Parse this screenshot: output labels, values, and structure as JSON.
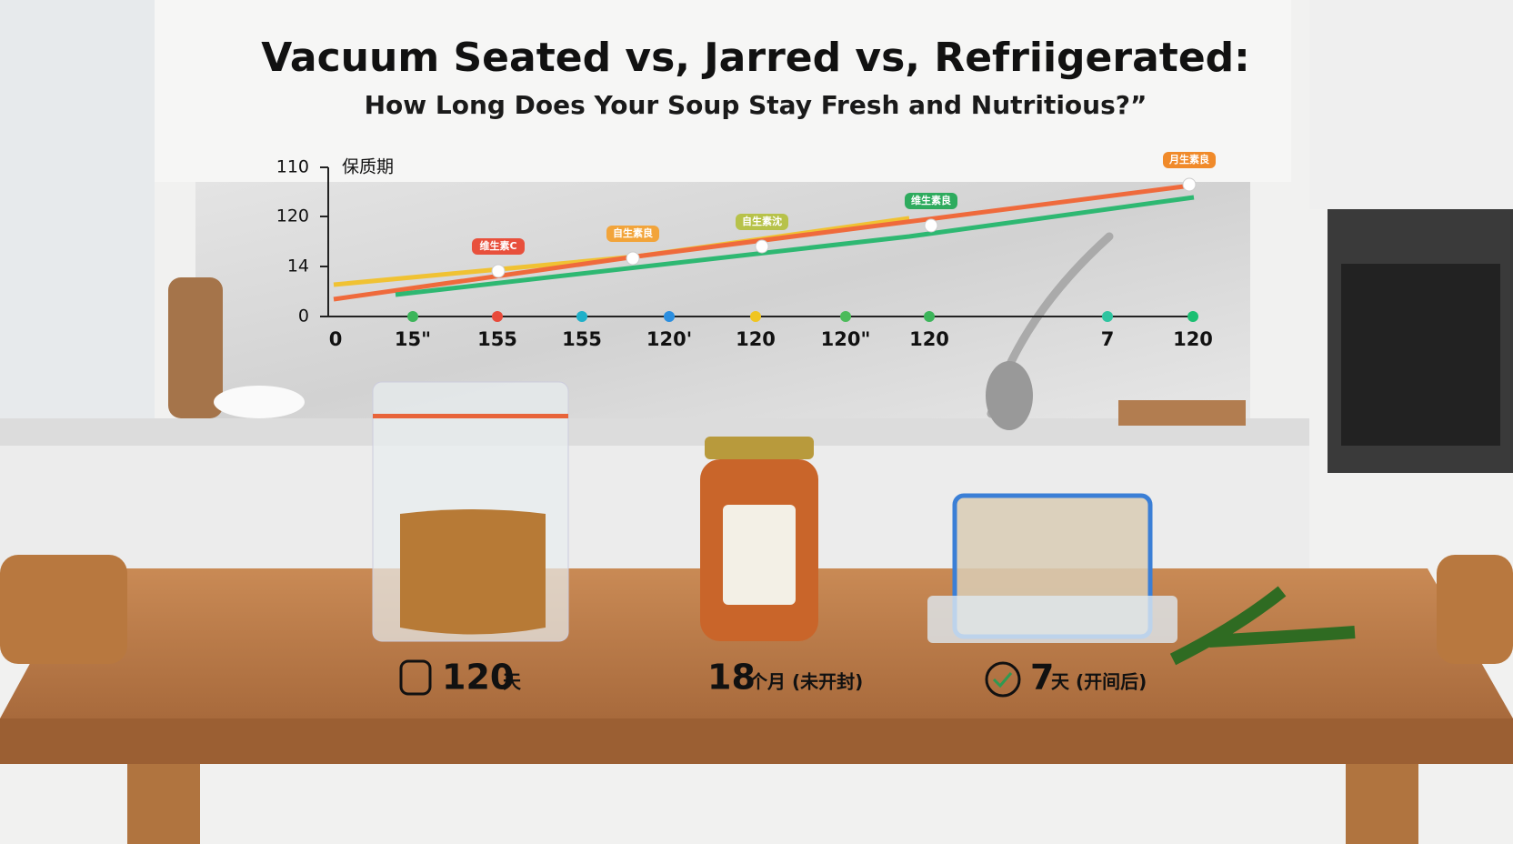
{
  "header": {
    "title": "Vacuum Seated vs, Jarred vs, Refriigerated:",
    "subtitle": "How Long Does Your Soup Stay Fresh and Nutritious?”"
  },
  "chart": {
    "axis_label": "保质期",
    "y_labels": [
      "110",
      "120",
      "14",
      "0"
    ],
    "x_labels": [
      "0",
      "15\"",
      "155",
      "155",
      "120'",
      "120",
      "120\"",
      "120",
      "7",
      "120"
    ],
    "point_labels": [
      "维生素C",
      "自生素良",
      "自生素沈",
      "维生素良",
      "月生素良"
    ]
  },
  "products": [
    {
      "amount": "120",
      "unit": "天"
    },
    {
      "amount": "18",
      "unit": "个月 (未开封)"
    },
    {
      "amount": "7",
      "unit": "天 (开间后)"
    }
  ]
}
